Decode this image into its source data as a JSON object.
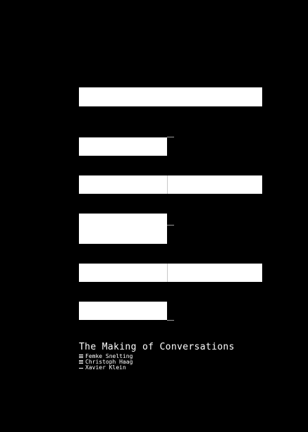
{
  "cover": {
    "background_color": "#000000",
    "bar_color": "#ffffff",
    "bar_pattern_icon": "stacked-bars-graphic",
    "title": "The Making of Conversations",
    "authors": [
      {
        "name": "Femke Snelting",
        "icon": "triple-line-icon"
      },
      {
        "name": "Christoph Haag",
        "icon": "triple-line-icon"
      },
      {
        "name": "Xavier Klein",
        "icon": "single-line-icon"
      }
    ]
  }
}
